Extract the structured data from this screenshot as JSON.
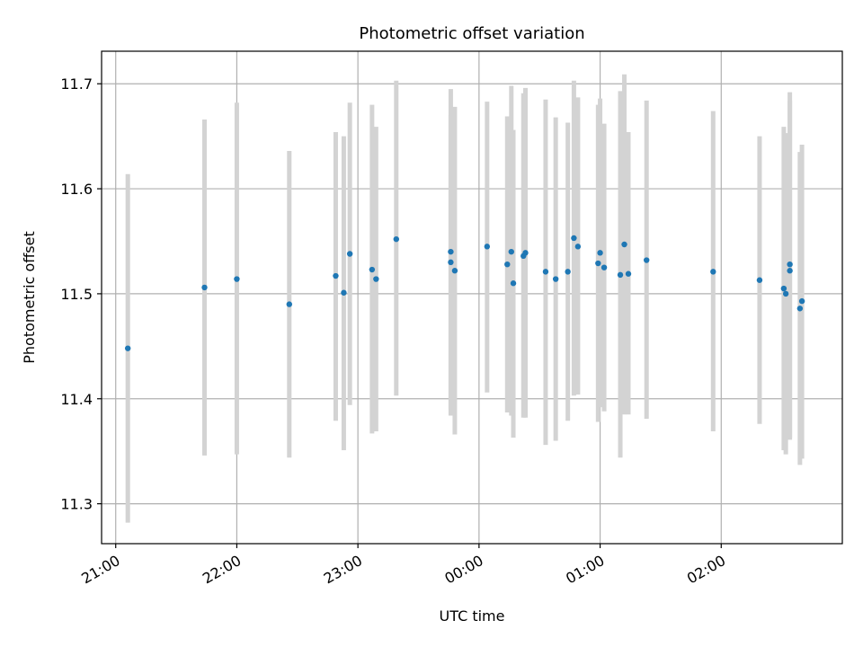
{
  "chart_data": {
    "type": "scatter",
    "title": "Photometric offset variation",
    "xlabel": "UTC time",
    "ylabel": "Photometric offset",
    "x_unit": "time of day (UTC), spanning midnight",
    "xlim": [
      "20:53",
      "03:00"
    ],
    "ylim": [
      11.262,
      11.731
    ],
    "x_ticks": [
      "21:00",
      "22:00",
      "23:00",
      "00:00",
      "01:00",
      "02:00"
    ],
    "y_ticks": [
      "11.3",
      "11.4",
      "11.5",
      "11.6",
      "11.7"
    ],
    "grid": true,
    "colors": {
      "point": "#1f77b4",
      "errorbar": "#d3d3d3",
      "grid": "#b0b0b0"
    },
    "series": [
      {
        "points": [
          {
            "t": "21:06",
            "y": 11.448,
            "lo": 11.282,
            "hi": 11.614
          },
          {
            "t": "21:44",
            "y": 11.506,
            "lo": 11.346,
            "hi": 11.666
          },
          {
            "t": "22:00",
            "y": 11.514,
            "lo": 11.347,
            "hi": 11.682
          },
          {
            "t": "22:26",
            "y": 11.49,
            "lo": 11.344,
            "hi": 11.636
          },
          {
            "t": "22:49",
            "y": 11.517,
            "lo": 11.379,
            "hi": 11.654
          },
          {
            "t": "22:53",
            "y": 11.501,
            "lo": 11.351,
            "hi": 11.65
          },
          {
            "t": "22:56",
            "y": 11.538,
            "lo": 11.394,
            "hi": 11.682
          },
          {
            "t": "23:07",
            "y": 11.523,
            "lo": 11.367,
            "hi": 11.68
          },
          {
            "t": "23:09",
            "y": 11.514,
            "lo": 11.369,
            "hi": 11.659
          },
          {
            "t": "23:19",
            "y": 11.552,
            "lo": 11.403,
            "hi": 11.703
          },
          {
            "t": "23:46",
            "y": 11.54,
            "lo": 11.384,
            "hi": 11.695
          },
          {
            "t": "23:46",
            "y": 11.53,
            "lo": 11.39,
            "hi": 11.67
          },
          {
            "t": "23:48",
            "y": 11.522,
            "lo": 11.366,
            "hi": 11.678
          },
          {
            "t": "00:04",
            "y": 11.545,
            "lo": 11.406,
            "hi": 11.683
          },
          {
            "t": "00:14",
            "y": 11.528,
            "lo": 11.387,
            "hi": 11.669
          },
          {
            "t": "00:16",
            "y": 11.54,
            "lo": 11.384,
            "hi": 11.698
          },
          {
            "t": "00:17",
            "y": 11.51,
            "lo": 11.363,
            "hi": 11.656
          },
          {
            "t": "00:22",
            "y": 11.536,
            "lo": 11.382,
            "hi": 11.691
          },
          {
            "t": "00:23",
            "y": 11.539,
            "lo": 11.382,
            "hi": 11.696
          },
          {
            "t": "00:33",
            "y": 11.521,
            "lo": 11.356,
            "hi": 11.685
          },
          {
            "t": "00:38",
            "y": 11.514,
            "lo": 11.36,
            "hi": 11.668
          },
          {
            "t": "00:44",
            "y": 11.521,
            "lo": 11.379,
            "hi": 11.663
          },
          {
            "t": "00:47",
            "y": 11.553,
            "lo": 11.403,
            "hi": 11.703
          },
          {
            "t": "00:49",
            "y": 11.545,
            "lo": 11.404,
            "hi": 11.687
          },
          {
            "t": "00:59",
            "y": 11.529,
            "lo": 11.378,
            "hi": 11.68
          },
          {
            "t": "01:00",
            "y": 11.539,
            "lo": 11.392,
            "hi": 11.686
          },
          {
            "t": "01:02",
            "y": 11.525,
            "lo": 11.388,
            "hi": 11.662
          },
          {
            "t": "01:10",
            "y": 11.518,
            "lo": 11.344,
            "hi": 11.693
          },
          {
            "t": "01:12",
            "y": 11.547,
            "lo": 11.385,
            "hi": 11.709
          },
          {
            "t": "01:14",
            "y": 11.519,
            "lo": 11.385,
            "hi": 11.654
          },
          {
            "t": "01:23",
            "y": 11.532,
            "lo": 11.381,
            "hi": 11.684
          },
          {
            "t": "01:56",
            "y": 11.521,
            "lo": 11.369,
            "hi": 11.674
          },
          {
            "t": "02:19",
            "y": 11.513,
            "lo": 11.376,
            "hi": 11.65
          },
          {
            "t": "02:31",
            "y": 11.505,
            "lo": 11.351,
            "hi": 11.659
          },
          {
            "t": "02:32",
            "y": 11.5,
            "lo": 11.347,
            "hi": 11.653
          },
          {
            "t": "02:34",
            "y": 11.528,
            "lo": 11.363,
            "hi": 11.692
          },
          {
            "t": "02:34",
            "y": 11.522,
            "lo": 11.361,
            "hi": 11.684
          },
          {
            "t": "02:39",
            "y": 11.486,
            "lo": 11.337,
            "hi": 11.635
          },
          {
            "t": "02:40",
            "y": 11.493,
            "lo": 11.343,
            "hi": 11.642
          }
        ]
      }
    ]
  }
}
